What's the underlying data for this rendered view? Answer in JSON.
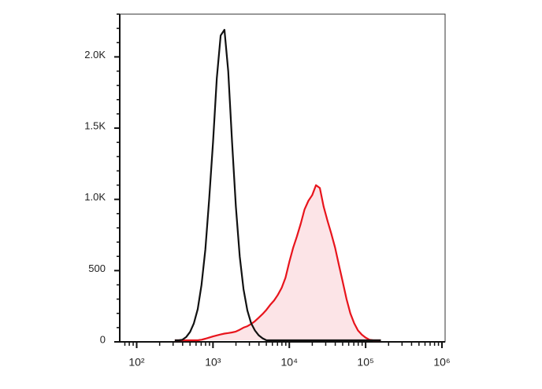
{
  "chart_data": {
    "type": "histogram-overlay",
    "xscale": "log",
    "xlim": [
      60,
      1100000
    ],
    "ylim": [
      0,
      2300
    ],
    "xticks": [
      {
        "value": 100,
        "label": "10²"
      },
      {
        "value": 1000,
        "label": "10³"
      },
      {
        "value": 10000,
        "label": "10⁴"
      },
      {
        "value": 100000,
        "label": "10⁵"
      },
      {
        "value": 1000000,
        "label": "10⁶"
      }
    ],
    "yticks": [
      0,
      500,
      {
        "value": 1000,
        "label": "1.0K"
      },
      {
        "value": 1500,
        "label": "1.5K"
      },
      {
        "value": 2000,
        "label": "2.0K"
      }
    ],
    "x": [
      316,
      355,
      398,
      447,
      501,
      562,
      631,
      708,
      794,
      891,
      1000,
      1122,
      1259,
      1413,
      1585,
      1778,
      1995,
      2239,
      2512,
      2818,
      3162,
      3548,
      3981,
      4467,
      5012,
      5623,
      6310,
      7079,
      7943,
      8913,
      10000,
      11220,
      12589,
      14125,
      15849,
      17783,
      19953,
      22387,
      25119,
      28184,
      31623,
      35481,
      39811,
      44668,
      50119,
      56234,
      63096,
      70795,
      79433,
      89125,
      100000,
      112202,
      125893,
      141254,
      158489
    ],
    "series": [
      {
        "color": "#111111",
        "values": [
          0,
          5,
          15,
          35,
          70,
          130,
          230,
          400,
          650,
          1000,
          1400,
          1850,
          2150,
          2190,
          1900,
          1400,
          950,
          600,
          370,
          220,
          130,
          80,
          45,
          25,
          10,
          5,
          0,
          0,
          0,
          0,
          0,
          0,
          0,
          0,
          0,
          0,
          0,
          0,
          0,
          0,
          0,
          0,
          0,
          0,
          0,
          0,
          0,
          0,
          0,
          0,
          0,
          0,
          0,
          0,
          0
        ]
      },
      {
        "color": "#e8141c",
        "fill": "#fce4e7",
        "values": [
          0,
          0,
          0,
          0,
          0,
          2,
          8,
          15,
          22,
          30,
          38,
          45,
          52,
          58,
          62,
          66,
          72,
          85,
          100,
          110,
          125,
          145,
          170,
          195,
          225,
          260,
          290,
          330,
          380,
          450,
          560,
          660,
          740,
          830,
          930,
          990,
          1030,
          1100,
          1080,
          950,
          850,
          760,
          660,
          540,
          420,
          300,
          200,
          130,
          80,
          50,
          30,
          15,
          8,
          3,
          0
        ]
      }
    ]
  }
}
